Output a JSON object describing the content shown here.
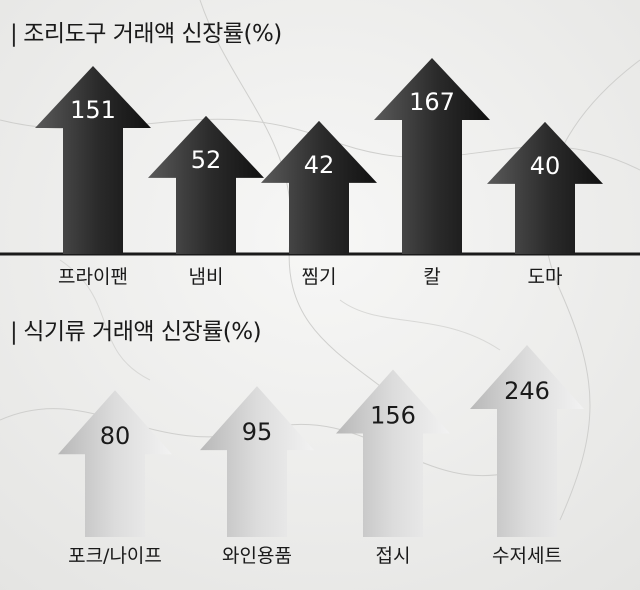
{
  "chart_data": [
    {
      "type": "bar",
      "title": "조리도구 거래액 신장률(%)",
      "categories": [
        "프라이팬",
        "냄비",
        "찜기",
        "칼",
        "도마"
      ],
      "values": [
        151,
        52,
        42,
        167,
        40
      ],
      "style": "dark-arrow"
    },
    {
      "type": "bar",
      "title": "식기류 거래액 신장률(%)",
      "categories": [
        "포크/나이프",
        "와인용품",
        "접시",
        "수저세트"
      ],
      "values": [
        80,
        95,
        156,
        246
      ],
      "style": "light-arrow"
    }
  ],
  "colors": {
    "dark_arrow": "#262626",
    "light_arrow": "#c9c9c9",
    "baseline": "#1a1a1a"
  }
}
